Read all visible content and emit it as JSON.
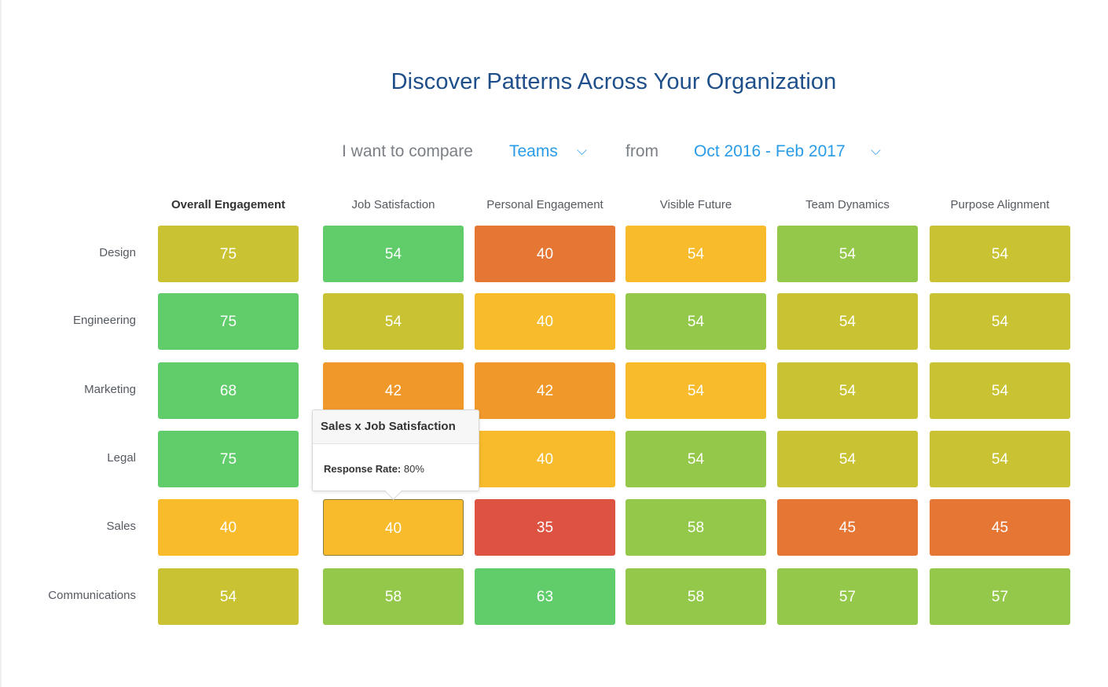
{
  "title": "Discover Patterns Across Your Organization",
  "compare": {
    "prefix": "I want to compare",
    "group": "Teams",
    "middle": "from",
    "date_range": "Oct 2016 -  Feb 2017"
  },
  "chart_data": {
    "type": "heatmap",
    "title": "Discover Patterns Across Your Organization",
    "columns": [
      "Overall Engagement",
      "Job Satisfaction",
      "Personal Engagement",
      "Visible Future",
      "Team Dynamics",
      "Purpose Alignment"
    ],
    "rows": [
      "Design",
      "Engineering",
      "Marketing",
      "Legal",
      "Sales",
      "Communications"
    ],
    "values": [
      [
        75,
        54,
        40,
        54,
        54,
        54
      ],
      [
        75,
        54,
        40,
        54,
        54,
        54
      ],
      [
        68,
        42,
        42,
        54,
        54,
        54
      ],
      [
        75,
        null,
        40,
        54,
        54,
        54
      ],
      [
        40,
        40,
        35,
        58,
        45,
        45
      ],
      [
        54,
        58,
        63,
        58,
        57,
        57
      ]
    ],
    "colors": [
      [
        "#c9c232",
        "#60cd6a",
        "#e67634",
        "#f8bb2c",
        "#94c84a",
        "#c9c232"
      ],
      [
        "#60cd6a",
        "#c9c232",
        "#f8bb2c",
        "#94c84a",
        "#c9c232",
        "#c9c232"
      ],
      [
        "#60cd6a",
        "#f0992a",
        "#f0992a",
        "#f8bb2c",
        "#c9c232",
        "#c9c232"
      ],
      [
        "#60cd6a",
        "#c9c232",
        "#f8bb2c",
        "#94c84a",
        "#c9c232",
        "#c9c232"
      ],
      [
        "#f8bb2c",
        "#f8bb2c",
        "#dd5240",
        "#94c84a",
        "#e67634",
        "#e67634"
      ],
      [
        "#c9c232",
        "#94c84a",
        "#60cd6a",
        "#94c84a",
        "#94c84a",
        "#94c84a"
      ]
    ],
    "selected": {
      "row": 4,
      "col": 1
    }
  },
  "tooltip": {
    "title": "Sales x Job Satisfaction",
    "label": "Response Rate:",
    "value": "80%"
  },
  "icons": {
    "dropdown": "chevron-down-icon"
  }
}
